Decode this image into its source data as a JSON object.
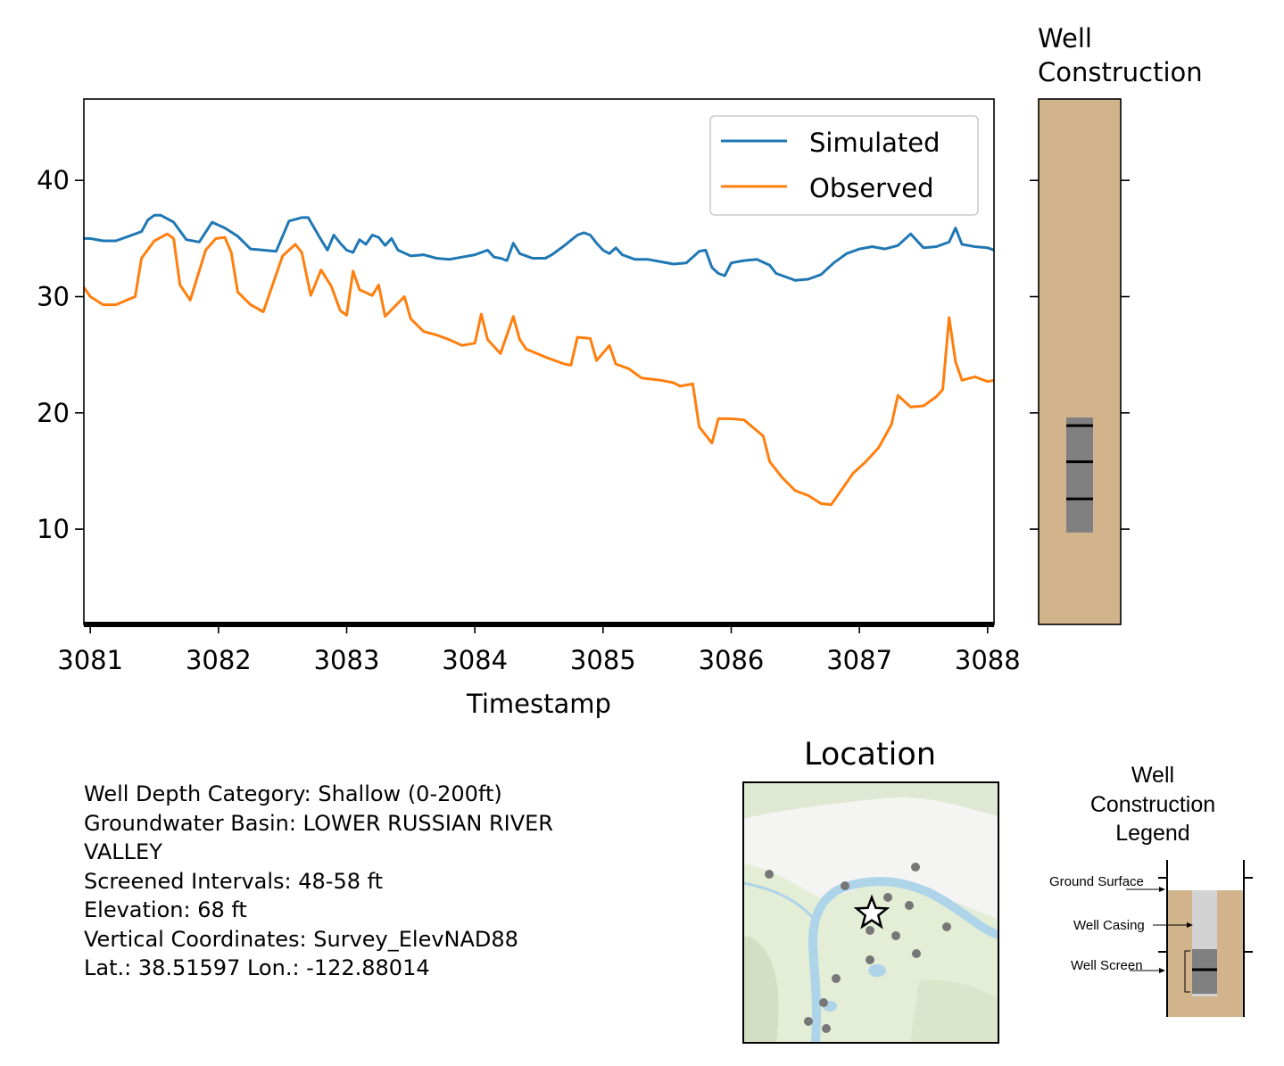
{
  "chart_data": [
    {
      "type": "line",
      "title": "",
      "xlabel": "Timestamp",
      "ylabel": "",
      "xlim": [
        3080.95,
        3088.05
      ],
      "ylim": [
        1.8,
        47.0
      ],
      "xticks": [
        3081,
        3082,
        3083,
        3084,
        3085,
        3086,
        3087,
        3088
      ],
      "yticks": [
        10,
        20,
        30,
        40
      ],
      "legend_position": "upper right",
      "series": [
        {
          "name": "Simulated",
          "color": "#1f77b4",
          "points": [
            [
              3080.95,
              35.0
            ],
            [
              3081.0,
              35.0
            ],
            [
              3081.1,
              34.8
            ],
            [
              3081.2,
              34.8
            ],
            [
              3081.3,
              35.2
            ],
            [
              3081.4,
              35.6
            ],
            [
              3081.45,
              36.6
            ],
            [
              3081.5,
              37.0
            ],
            [
              3081.55,
              37.0
            ],
            [
              3081.65,
              36.4
            ],
            [
              3081.75,
              34.9
            ],
            [
              3081.85,
              34.7
            ],
            [
              3081.95,
              36.4
            ],
            [
              3082.05,
              35.9
            ],
            [
              3082.15,
              35.2
            ],
            [
              3082.25,
              34.1
            ],
            [
              3082.35,
              34.0
            ],
            [
              3082.45,
              33.9
            ],
            [
              3082.55,
              36.5
            ],
            [
              3082.65,
              36.8
            ],
            [
              3082.7,
              36.8
            ],
            [
              3082.8,
              34.9
            ],
            [
              3082.85,
              34.0
            ],
            [
              3082.9,
              35.3
            ],
            [
              3082.95,
              34.6
            ],
            [
              3083.0,
              34.0
            ],
            [
              3083.05,
              33.8
            ],
            [
              3083.1,
              34.9
            ],
            [
              3083.15,
              34.5
            ],
            [
              3083.2,
              35.3
            ],
            [
              3083.25,
              35.1
            ],
            [
              3083.3,
              34.4
            ],
            [
              3083.35,
              35.0
            ],
            [
              3083.4,
              34.0
            ],
            [
              3083.5,
              33.5
            ],
            [
              3083.6,
              33.6
            ],
            [
              3083.7,
              33.3
            ],
            [
              3083.8,
              33.2
            ],
            [
              3083.9,
              33.4
            ],
            [
              3084.0,
              33.6
            ],
            [
              3084.1,
              34.0
            ],
            [
              3084.15,
              33.4
            ],
            [
              3084.2,
              33.3
            ],
            [
              3084.25,
              33.1
            ],
            [
              3084.3,
              34.6
            ],
            [
              3084.35,
              33.7
            ],
            [
              3084.45,
              33.3
            ],
            [
              3084.55,
              33.3
            ],
            [
              3084.6,
              33.6
            ],
            [
              3084.7,
              34.4
            ],
            [
              3084.8,
              35.3
            ],
            [
              3084.85,
              35.5
            ],
            [
              3084.9,
              35.3
            ],
            [
              3084.95,
              34.6
            ],
            [
              3085.0,
              34.0
            ],
            [
              3085.05,
              33.7
            ],
            [
              3085.1,
              34.2
            ],
            [
              3085.15,
              33.6
            ],
            [
              3085.25,
              33.2
            ],
            [
              3085.35,
              33.2
            ],
            [
              3085.45,
              33.0
            ],
            [
              3085.55,
              32.8
            ],
            [
              3085.65,
              32.9
            ],
            [
              3085.75,
              33.9
            ],
            [
              3085.8,
              34.0
            ],
            [
              3085.85,
              32.5
            ],
            [
              3085.9,
              32.0
            ],
            [
              3085.95,
              31.8
            ],
            [
              3086.0,
              32.9
            ],
            [
              3086.1,
              33.1
            ],
            [
              3086.2,
              33.2
            ],
            [
              3086.3,
              32.7
            ],
            [
              3086.35,
              32.0
            ],
            [
              3086.5,
              31.4
            ],
            [
              3086.6,
              31.5
            ],
            [
              3086.7,
              31.9
            ],
            [
              3086.8,
              32.9
            ],
            [
              3086.9,
              33.7
            ],
            [
              3087.0,
              34.1
            ],
            [
              3087.1,
              34.3
            ],
            [
              3087.2,
              34.1
            ],
            [
              3087.3,
              34.4
            ],
            [
              3087.4,
              35.4
            ],
            [
              3087.5,
              34.2
            ],
            [
              3087.6,
              34.3
            ],
            [
              3087.7,
              34.7
            ],
            [
              3087.75,
              35.9
            ],
            [
              3087.8,
              34.5
            ],
            [
              3087.9,
              34.3
            ],
            [
              3088.0,
              34.2
            ],
            [
              3088.05,
              34.0
            ]
          ]
        },
        {
          "name": "Observed",
          "color": "#ff7f0e",
          "points": [
            [
              3080.95,
              30.8
            ],
            [
              3081.0,
              30.0
            ],
            [
              3081.1,
              29.3
            ],
            [
              3081.2,
              29.3
            ],
            [
              3081.35,
              30.0
            ],
            [
              3081.4,
              33.3
            ],
            [
              3081.5,
              34.8
            ],
            [
              3081.6,
              35.4
            ],
            [
              3081.65,
              35.0
            ],
            [
              3081.7,
              31.0
            ],
            [
              3081.78,
              29.7
            ],
            [
              3081.9,
              34.0
            ],
            [
              3081.98,
              35.0
            ],
            [
              3082.05,
              35.1
            ],
            [
              3082.1,
              33.8
            ],
            [
              3082.15,
              30.4
            ],
            [
              3082.25,
              29.3
            ],
            [
              3082.35,
              28.7
            ],
            [
              3082.5,
              33.5
            ],
            [
              3082.6,
              34.5
            ],
            [
              3082.65,
              33.8
            ],
            [
              3082.72,
              30.1
            ],
            [
              3082.8,
              32.3
            ],
            [
              3082.88,
              30.9
            ],
            [
              3082.95,
              28.8
            ],
            [
              3083.0,
              28.4
            ],
            [
              3083.05,
              32.2
            ],
            [
              3083.1,
              30.6
            ],
            [
              3083.2,
              30.1
            ],
            [
              3083.25,
              31.0
            ],
            [
              3083.3,
              28.3
            ],
            [
              3083.45,
              30.0
            ],
            [
              3083.5,
              28.1
            ],
            [
              3083.6,
              27.0
            ],
            [
              3083.7,
              26.7
            ],
            [
              3083.8,
              26.3
            ],
            [
              3083.9,
              25.8
            ],
            [
              3084.0,
              26.0
            ],
            [
              3084.05,
              28.5
            ],
            [
              3084.1,
              26.3
            ],
            [
              3084.2,
              25.1
            ],
            [
              3084.3,
              28.3
            ],
            [
              3084.35,
              26.3
            ],
            [
              3084.4,
              25.5
            ],
            [
              3084.55,
              24.8
            ],
            [
              3084.7,
              24.2
            ],
            [
              3084.75,
              24.1
            ],
            [
              3084.8,
              26.5
            ],
            [
              3084.9,
              26.4
            ],
            [
              3084.95,
              24.5
            ],
            [
              3085.05,
              25.8
            ],
            [
              3085.1,
              24.2
            ],
            [
              3085.2,
              23.8
            ],
            [
              3085.3,
              23.0
            ],
            [
              3085.45,
              22.8
            ],
            [
              3085.55,
              22.6
            ],
            [
              3085.6,
              22.3
            ],
            [
              3085.7,
              22.5
            ],
            [
              3085.75,
              18.8
            ],
            [
              3085.85,
              17.4
            ],
            [
              3085.9,
              19.5
            ],
            [
              3086.0,
              19.5
            ],
            [
              3086.1,
              19.4
            ],
            [
              3086.25,
              18.0
            ],
            [
              3086.3,
              15.8
            ],
            [
              3086.4,
              14.4
            ],
            [
              3086.5,
              13.3
            ],
            [
              3086.6,
              12.9
            ],
            [
              3086.7,
              12.2
            ],
            [
              3086.78,
              12.1
            ],
            [
              3086.85,
              13.2
            ],
            [
              3086.95,
              14.8
            ],
            [
              3087.05,
              15.8
            ],
            [
              3087.15,
              17.0
            ],
            [
              3087.25,
              19.0
            ],
            [
              3087.3,
              21.5
            ],
            [
              3087.4,
              20.5
            ],
            [
              3087.5,
              20.6
            ],
            [
              3087.6,
              21.4
            ],
            [
              3087.65,
              22.0
            ],
            [
              3087.7,
              28.2
            ],
            [
              3087.75,
              24.4
            ],
            [
              3087.8,
              22.8
            ],
            [
              3087.9,
              23.1
            ],
            [
              3088.0,
              22.7
            ],
            [
              3088.05,
              22.8
            ]
          ]
        }
      ]
    },
    {
      "type": "other",
      "title": "Well\nConstruction",
      "ylim": [
        1.8,
        47.0
      ],
      "colors": {
        "ground": "#d2b48c",
        "screen": "#808080",
        "marks": "#000000"
      },
      "screen_interval_data": [
        9.7,
        19.6
      ],
      "screen_lines": [
        12.6,
        15.8,
        18.9
      ]
    }
  ],
  "info": {
    "lines": [
      "Well Depth Category: Shallow (0-200ft)",
      "Groundwater Basin: LOWER RUSSIAN RIVER\nVALLEY",
      "Screened Intervals: 48-58 ft",
      "Elevation: 68 ft",
      "Vertical Coordinates: Survey_ElevNAD88",
      "Lat.: 38.51597 Lon.: -122.88014"
    ]
  },
  "location": {
    "title": "Location",
    "colors": {
      "land": "#e4edd5",
      "water": "#aed4ea",
      "points": "#777777"
    }
  },
  "construction_legend": {
    "title": "Well\nConstruction\nLegend",
    "labels": {
      "ground_surface": "Ground Surface",
      "well_casing": "Well Casing",
      "well_screen": "Well Screen"
    },
    "colors": {
      "ground": "#d2b48c",
      "casing": "#d3d3d3",
      "screen": "#808080"
    }
  }
}
